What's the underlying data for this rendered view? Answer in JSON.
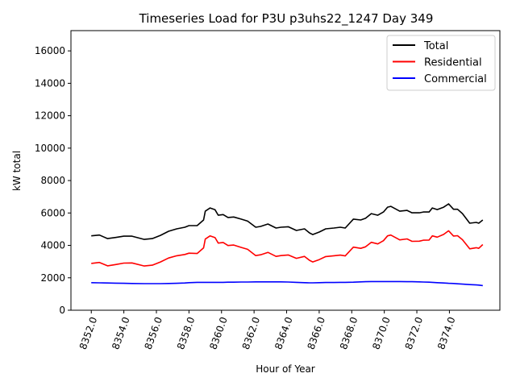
{
  "chart_data": {
    "type": "line",
    "title": "Timeseries Load for P3U p3uhs22_1247  Day 349",
    "xlabel": "Hour of Year",
    "ylabel": "kW total",
    "xlim": [
      8350.75,
      8377.1
    ],
    "ylim": [
      0,
      17250
    ],
    "grid": false,
    "legend_position": "top-right",
    "x_ticks": [
      "8352.0",
      "8354.0",
      "8356.0",
      "8358.0",
      "8360.0",
      "8362.0",
      "8364.0",
      "8366.0",
      "8368.0",
      "8370.0",
      "8372.0",
      "8374.0"
    ],
    "x_tick_values": [
      8352,
      8354,
      8356,
      8358,
      8360,
      8362,
      8364,
      8366,
      8368,
      8370,
      8372,
      8374
    ],
    "y_ticks": [
      "0",
      "2000",
      "4000",
      "6000",
      "8000",
      "10000",
      "12000",
      "14000",
      "16000"
    ],
    "y_tick_values": [
      0,
      2000,
      4000,
      6000,
      8000,
      10000,
      12000,
      14000,
      16000
    ],
    "x": [
      8352.0,
      8352.5,
      8353.0,
      8353.5,
      8354.0,
      8354.5,
      8355.25,
      8355.75,
      8356.25,
      8356.75,
      8357.25,
      8357.75,
      8358.0,
      8358.5,
      8358.9,
      8359.0,
      8359.3,
      8359.6,
      8359.8,
      8360.1,
      8360.4,
      8360.75,
      8361.2,
      8361.6,
      8362.1,
      8362.4,
      8362.85,
      8363.35,
      8363.65,
      8364.1,
      8364.6,
      8365.1,
      8365.4,
      8365.6,
      8366.0,
      8366.4,
      8366.9,
      8367.3,
      8367.6,
      8368.1,
      8368.55,
      8368.85,
      8369.2,
      8369.6,
      8369.95,
      8370.2,
      8370.4,
      8370.95,
      8371.4,
      8371.7,
      8372.15,
      8372.4,
      8372.75,
      8372.95,
      8373.25,
      8373.65,
      8373.95,
      8374.25,
      8374.5,
      8374.8,
      8375.25,
      8375.65,
      8375.8,
      8376.05
    ],
    "series": [
      {
        "name": "Total",
        "color": "#000000",
        "values": [
          4590,
          4640,
          4420,
          4490,
          4570,
          4570,
          4370,
          4420,
          4620,
          4870,
          5020,
          5120,
          5220,
          5220,
          5570,
          6110,
          6310,
          6200,
          5860,
          5900,
          5720,
          5750,
          5620,
          5500,
          5120,
          5170,
          5320,
          5070,
          5120,
          5150,
          4920,
          5020,
          4770,
          4670,
          4820,
          5020,
          5070,
          5120,
          5070,
          5620,
          5570,
          5670,
          5960,
          5860,
          6060,
          6360,
          6410,
          6110,
          6160,
          6010,
          6010,
          6060,
          6060,
          6310,
          6210,
          6360,
          6560,
          6230,
          6230,
          5960,
          5370,
          5420,
          5370,
          5570
        ]
      },
      {
        "name": "Residential",
        "color": "#ff0000",
        "values": [
          2890,
          2950,
          2740,
          2820,
          2910,
          2920,
          2730,
          2780,
          2980,
          3220,
          3360,
          3440,
          3520,
          3500,
          3850,
          4390,
          4590,
          4480,
          4140,
          4180,
          3990,
          4020,
          3880,
          3760,
          3370,
          3420,
          3570,
          3320,
          3370,
          3410,
          3200,
          3320,
          3080,
          2980,
          3120,
          3310,
          3360,
          3400,
          3350,
          3890,
          3820,
          3910,
          4190,
          4090,
          4290,
          4590,
          4640,
          4340,
          4400,
          4250,
          4260,
          4320,
          4330,
          4590,
          4510,
          4680,
          4900,
          4580,
          4600,
          4350,
          3790,
          3860,
          3820,
          4050
        ]
      },
      {
        "name": "Commercial",
        "color": "#0000ff",
        "values": [
          1700,
          1690,
          1680,
          1670,
          1660,
          1650,
          1640,
          1640,
          1640,
          1650,
          1660,
          1680,
          1700,
          1720,
          1720,
          1720,
          1720,
          1720,
          1720,
          1720,
          1730,
          1730,
          1740,
          1740,
          1750,
          1750,
          1750,
          1750,
          1750,
          1740,
          1720,
          1700,
          1690,
          1690,
          1700,
          1710,
          1710,
          1720,
          1720,
          1730,
          1750,
          1760,
          1770,
          1770,
          1770,
          1770,
          1770,
          1770,
          1760,
          1760,
          1750,
          1740,
          1730,
          1720,
          1700,
          1680,
          1660,
          1650,
          1630,
          1610,
          1580,
          1560,
          1550,
          1520
        ]
      }
    ]
  }
}
